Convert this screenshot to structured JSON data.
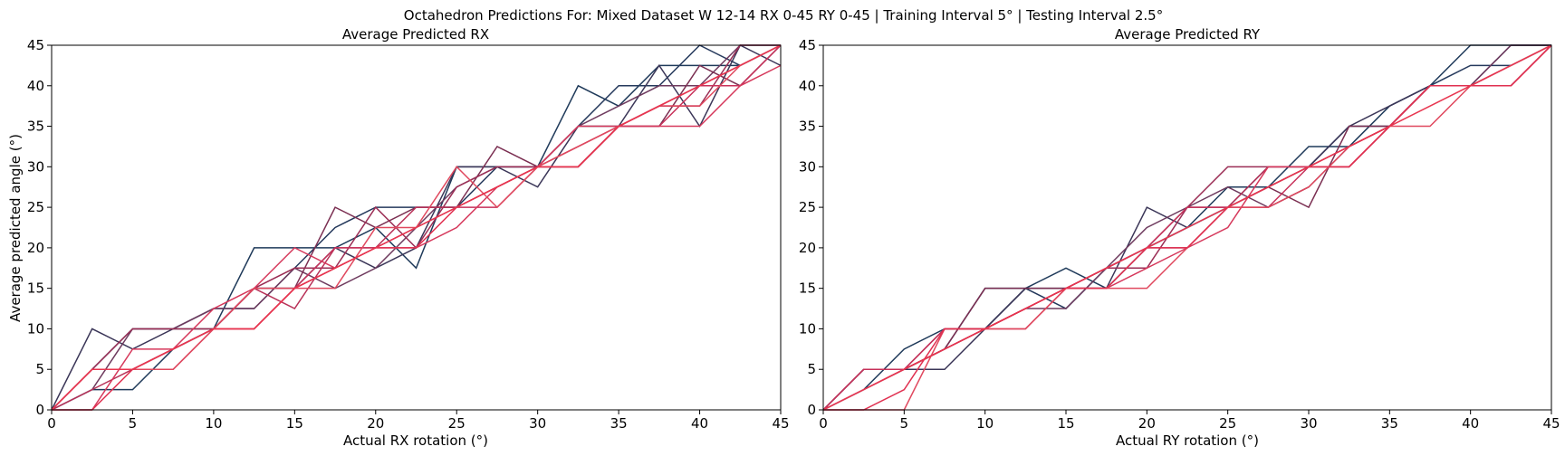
{
  "figure_title": "Octahedron Predictions For: Mixed Dataset W 12-14 RX 0-45 RY 0-45 | Training Interval 5° | Testing Interval 2.5°",
  "chart_data": [
    {
      "type": "line",
      "title": "Average Predicted RX",
      "xlabel": "Actual RX rotation (°)",
      "ylabel": "Average predicted angle (°)",
      "xlim": [
        0,
        45
      ],
      "ylim": [
        0,
        45
      ],
      "xticks": [
        "0",
        "5",
        "10",
        "15",
        "20",
        "25",
        "30",
        "35",
        "40",
        "45"
      ],
      "yticks": [
        "0",
        "5",
        "10",
        "15",
        "20",
        "25",
        "30",
        "35",
        "40",
        "45"
      ],
      "grid": false,
      "x": [
        0,
        2.5,
        5,
        7.5,
        10,
        12.5,
        15,
        17.5,
        20,
        22.5,
        25,
        27.5,
        30,
        32.5,
        35,
        37.5,
        40,
        42.5,
        45
      ],
      "series": [
        {
          "color": "#1f3a5a",
          "values": [
            0,
            2.5,
            2.5,
            7.5,
            10,
            20,
            20,
            20,
            22.5,
            17.5,
            30,
            30,
            30,
            40,
            37.5,
            42.5,
            42.5,
            42.5,
            45
          ]
        },
        {
          "color": "#25395c",
          "values": [
            0,
            5,
            10,
            10,
            12.5,
            12.5,
            17.5,
            22.5,
            25,
            25,
            25,
            30,
            30,
            35,
            40,
            40,
            45,
            42.5,
            45
          ]
        },
        {
          "color": "#3b3658",
          "values": [
            0,
            10,
            7.5,
            10,
            10,
            15,
            15,
            20,
            17.5,
            20,
            30,
            30,
            27.5,
            35,
            35,
            42.5,
            35,
            45,
            42.5
          ]
        },
        {
          "color": "#6e3a5e",
          "values": [
            0,
            2.5,
            10,
            10,
            12.5,
            12.5,
            17.5,
            15,
            17.5,
            22.5,
            27.5,
            30,
            30,
            35,
            37.5,
            40,
            40,
            45,
            45
          ]
        },
        {
          "color": "#7b2f52",
          "values": [
            0,
            5,
            5,
            7.5,
            10,
            15,
            15,
            25,
            22.5,
            25,
            25,
            32.5,
            30,
            30,
            35,
            35,
            42.5,
            40,
            45
          ]
        },
        {
          "color": "#9b2e55",
          "values": [
            0,
            5,
            10,
            10,
            10,
            15,
            17.5,
            17.5,
            25,
            20,
            27.5,
            30,
            30,
            30,
            35,
            37.5,
            37.5,
            45,
            45
          ]
        },
        {
          "color": "#b83158",
          "values": [
            0,
            2.5,
            5,
            7.5,
            10,
            15,
            12.5,
            20,
            20,
            25,
            25,
            27.5,
            30,
            32.5,
            35,
            37.5,
            40,
            42.5,
            45
          ]
        },
        {
          "color": "#c7315a",
          "values": [
            0,
            5,
            5,
            5,
            10,
            10,
            15,
            20,
            20,
            22.5,
            25,
            25,
            30,
            30,
            35,
            35,
            40,
            40,
            45
          ]
        },
        {
          "color": "#d6395c",
          "values": [
            0,
            0,
            7.5,
            7.5,
            12.5,
            15,
            20,
            17.5,
            20,
            20,
            22.5,
            27.5,
            30,
            35,
            35,
            35,
            35,
            40,
            42.5
          ]
        },
        {
          "color": "#e0485e",
          "values": [
            0,
            5,
            5,
            5,
            10,
            15,
            15,
            15,
            22.5,
            22.5,
            30,
            25,
            30,
            32.5,
            35,
            37.5,
            37.5,
            42.5,
            45
          ]
        },
        {
          "color": "#e03050",
          "values": [
            0,
            0,
            5,
            7.5,
            10,
            10,
            15,
            17.5,
            20,
            20,
            25,
            27.5,
            30,
            30,
            35,
            37.5,
            40,
            42.5,
            45
          ]
        },
        {
          "color": "#e8354f",
          "values": [
            0,
            5,
            5,
            7.5,
            10,
            10,
            15,
            17.5,
            20,
            22.5,
            25,
            27.5,
            30,
            30,
            35,
            37.5,
            40,
            42.5,
            45
          ]
        }
      ]
    },
    {
      "type": "line",
      "title": "Average Predicted RY",
      "xlabel": "Actual RY rotation (°)",
      "ylabel": "",
      "xlim": [
        0,
        45
      ],
      "ylim": [
        0,
        45
      ],
      "xticks": [
        "0",
        "5",
        "10",
        "15",
        "20",
        "25",
        "30",
        "35",
        "40",
        "45"
      ],
      "yticks": [
        "0",
        "5",
        "10",
        "15",
        "20",
        "25",
        "30",
        "35",
        "40",
        "45"
      ],
      "grid": false,
      "x": [
        0,
        2.5,
        5,
        7.5,
        10,
        12.5,
        15,
        17.5,
        20,
        22.5,
        25,
        27.5,
        30,
        32.5,
        35,
        37.5,
        40,
        42.5,
        45
      ],
      "series": [
        {
          "color": "#1f3a5a",
          "values": [
            0,
            2.5,
            7.5,
            10,
            10,
            15,
            17.5,
            15,
            20,
            22.5,
            27.5,
            27.5,
            32.5,
            32.5,
            37.5,
            40,
            45,
            45,
            45
          ]
        },
        {
          "color": "#25395c",
          "values": [
            0,
            5,
            5,
            7.5,
            15,
            15,
            12.5,
            17.5,
            20,
            22.5,
            25,
            30,
            30,
            35,
            35,
            40,
            42.5,
            42.5,
            45
          ]
        },
        {
          "color": "#3b3658",
          "values": [
            0,
            5,
            5,
            5,
            10,
            15,
            15,
            15,
            25,
            22.5,
            25,
            27.5,
            30,
            35,
            37.5,
            40,
            40,
            45,
            45
          ]
        },
        {
          "color": "#6e3a5e",
          "values": [
            0,
            2.5,
            5,
            7.5,
            10,
            12.5,
            12.5,
            17.5,
            22.5,
            25,
            27.5,
            25,
            27.5,
            32.5,
            35,
            40,
            40,
            45,
            45
          ]
        },
        {
          "color": "#7b2f52",
          "values": [
            0,
            5,
            5,
            7.5,
            15,
            15,
            15,
            17.5,
            20,
            25,
            25,
            27.5,
            25,
            35,
            35,
            40,
            40,
            42.5,
            45
          ]
        },
        {
          "color": "#9b2e55",
          "values": [
            0,
            5,
            5,
            10,
            10,
            12.5,
            15,
            17.5,
            17.5,
            25,
            30,
            30,
            30,
            30,
            35,
            40,
            40,
            40,
            45
          ]
        },
        {
          "color": "#b83158",
          "values": [
            0,
            2.5,
            5,
            7.5,
            10,
            12.5,
            15,
            15,
            20,
            20,
            25,
            30,
            30,
            32.5,
            35,
            40,
            40,
            42.5,
            45
          ]
        },
        {
          "color": "#c7315a",
          "values": [
            0,
            5,
            5,
            10,
            10,
            10,
            15,
            17.5,
            20,
            25,
            25,
            25,
            30,
            30,
            35,
            40,
            40,
            40,
            45
          ]
        },
        {
          "color": "#d6395c",
          "values": [
            0,
            2.5,
            5,
            7.5,
            10,
            12.5,
            15,
            15,
            17.5,
            20,
            22.5,
            30,
            30,
            30,
            35,
            40,
            40,
            40,
            45
          ]
        },
        {
          "color": "#e0485e",
          "values": [
            0,
            0,
            0,
            10,
            10,
            10,
            15,
            15,
            15,
            20,
            25,
            25,
            27.5,
            32.5,
            35,
            35,
            40,
            42.5,
            45
          ]
        },
        {
          "color": "#e03050",
          "values": [
            0,
            0,
            2.5,
            10,
            10,
            12.5,
            15,
            15,
            20,
            20,
            25,
            27.5,
            30,
            30,
            35,
            40,
            40,
            40,
            45
          ]
        },
        {
          "color": "#e8354f",
          "values": [
            0,
            2.5,
            5,
            7.5,
            10,
            12.5,
            15,
            17.5,
            20,
            22.5,
            25,
            27.5,
            30,
            32.5,
            35,
            37.5,
            40,
            42.5,
            45
          ]
        }
      ]
    }
  ]
}
